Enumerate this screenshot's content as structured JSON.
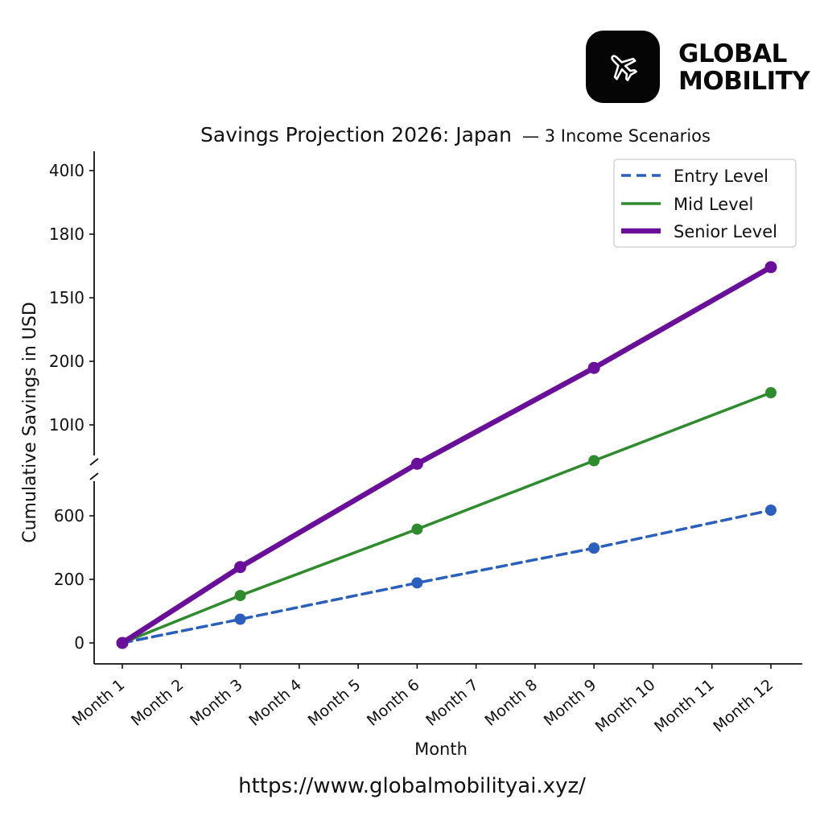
{
  "brand": {
    "line1": "GLOBAL",
    "line2": "MOBILITY",
    "icon": "airplane-icon"
  },
  "footer": {
    "url": "https://www.globalmobilityai.xyz/"
  },
  "chart_data": {
    "type": "line",
    "title_main": "Savings Projection 2026: Japan",
    "title_sub": "— 3 Income Scenarios",
    "xlabel": "Month",
    "ylabel": "Cumulative Savings in USD",
    "categories": [
      "Month 1",
      "Month 2",
      "Month 3",
      "Month 4",
      "Month 5",
      "Month 6",
      "Month 7",
      "Month 8",
      "Month 9",
      "Month 10",
      "Month 11",
      "Month 12"
    ],
    "y_ticks_lower": [
      "0",
      "200",
      "600"
    ],
    "y_ticks_upper": [
      "10I0",
      "20I0",
      "15I0",
      "18I0",
      "40I0"
    ],
    "axis_break": true,
    "grid": false,
    "legend_position": "top-right",
    "series": [
      {
        "name": "Entry Level",
        "color": "#2a5fbd",
        "style": "dashed",
        "x": [
          1,
          3,
          6,
          9,
          12
        ],
        "values": [
          0,
          75,
          190,
          300,
          420
        ]
      },
      {
        "name": "Mid Level",
        "color": "#2e8b2e",
        "style": "solid",
        "x": [
          1,
          3,
          6,
          9,
          12
        ],
        "values": [
          0,
          150,
          360,
          580,
          800
        ]
      },
      {
        "name": "Senior Level",
        "color": "#6a0f9a",
        "style": "solid-thick",
        "x": [
          1,
          3,
          6,
          9,
          12
        ],
        "values": [
          0,
          240,
          570,
          875,
          1180
        ]
      }
    ]
  }
}
